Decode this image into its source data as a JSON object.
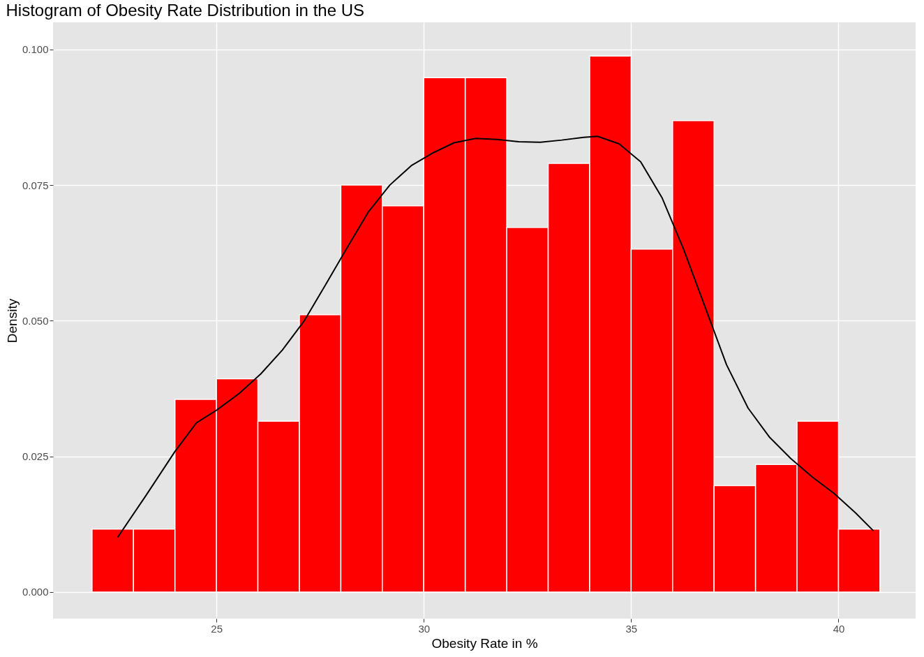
{
  "chart_data": {
    "type": "histogram",
    "title": "Histogram of Obesity Rate Distribution in the US",
    "xlabel": "Obesity Rate in %",
    "ylabel": "Density",
    "bins": [
      22,
      23,
      24,
      25,
      26,
      27,
      28,
      29,
      30,
      31,
      32,
      33,
      34,
      35,
      36,
      37,
      38,
      39,
      40,
      41
    ],
    "values": [
      0.0116,
      0.0116,
      0.0355,
      0.0393,
      0.0315,
      0.0511,
      0.075,
      0.0712,
      0.0948,
      0.0948,
      0.0672,
      0.079,
      0.0988,
      0.0632,
      0.0869,
      0.0196,
      0.0235,
      0.0315,
      0.0116
    ],
    "color": "#ff0000",
    "series": [
      {
        "type": "line",
        "color": "#000000",
        "x": [
          22.62,
          23.31,
          24.0,
          24.52,
          25.0,
          25.55,
          26.07,
          26.59,
          27.11,
          27.63,
          28.14,
          28.66,
          29.18,
          29.7,
          30.21,
          30.73,
          31.25,
          31.77,
          32.29,
          32.81,
          33.33,
          33.85,
          34.19,
          34.71,
          35.23,
          35.75,
          36.26,
          36.78,
          37.3,
          37.82,
          38.33,
          38.85,
          39.37,
          39.89,
          40.41,
          40.84
        ],
        "values": [
          0.0101,
          0.0179,
          0.0259,
          0.0312,
          0.0335,
          0.0366,
          0.0402,
          0.0446,
          0.0499,
          0.0566,
          0.0633,
          0.07,
          0.075,
          0.0786,
          0.0809,
          0.0828,
          0.0836,
          0.0834,
          0.083,
          0.0829,
          0.0833,
          0.0838,
          0.084,
          0.0826,
          0.0793,
          0.0726,
          0.0633,
          0.0526,
          0.0419,
          0.0339,
          0.0286,
          0.0246,
          0.0212,
          0.0182,
          0.0146,
          0.0113
        ]
      }
    ],
    "xlim": [
      21.06,
      41.86
    ],
    "ylim": [
      -0.0049,
      0.105
    ],
    "xticks": [
      25,
      30,
      35,
      40
    ],
    "yticks": [
      {
        "value": 0,
        "label": "0.000"
      },
      {
        "value": 0.025,
        "label": "0.025"
      },
      {
        "value": 0.05,
        "label": "0.050"
      },
      {
        "value": 0.075,
        "label": "0.075"
      },
      {
        "value": 0.1,
        "label": "0.100"
      }
    ],
    "grid": true,
    "legend": false
  }
}
